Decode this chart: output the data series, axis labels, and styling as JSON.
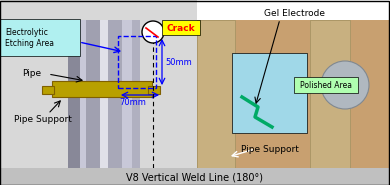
{
  "labels": {
    "electrolytic": "Electrolytic\nEtching Area",
    "crack": "Crack",
    "pipe": "Pipe",
    "pipe_support_left": "Pipe Support",
    "v8_label": "V8 Vertical Weld Line (180°)",
    "gel_electrode": "Gel Electrode",
    "polished_area": "Polished Area",
    "pipe_support_right": "Pipe Support",
    "dim_50": "50mm",
    "dim_70": "70mm"
  },
  "colors": {
    "cyan_bg": "#b0f0f0",
    "yellow_label": "#ffff00",
    "red_crack": "#ff0000",
    "blue_arrow": "#0000ff",
    "black": "#000000",
    "white": "#ffffff",
    "green_arrow": "#00aa00",
    "green_bg": "#b0ffb0",
    "gray_label_bg": "#c0c0c0",
    "pipe_support_color": "#b8a000",
    "photo_bg": "#c8a070"
  },
  "pipe_stripes": [
    [
      68,
      12,
      "#888898"
    ],
    [
      80,
      6,
      "#c8c8d8"
    ],
    [
      86,
      14,
      "#a0a0b0"
    ],
    [
      100,
      8,
      "#e0e0e8"
    ],
    [
      108,
      14,
      "#a8a8b8"
    ],
    [
      122,
      10,
      "#c8c8d8"
    ],
    [
      132,
      8,
      "#b0b0c0"
    ]
  ]
}
